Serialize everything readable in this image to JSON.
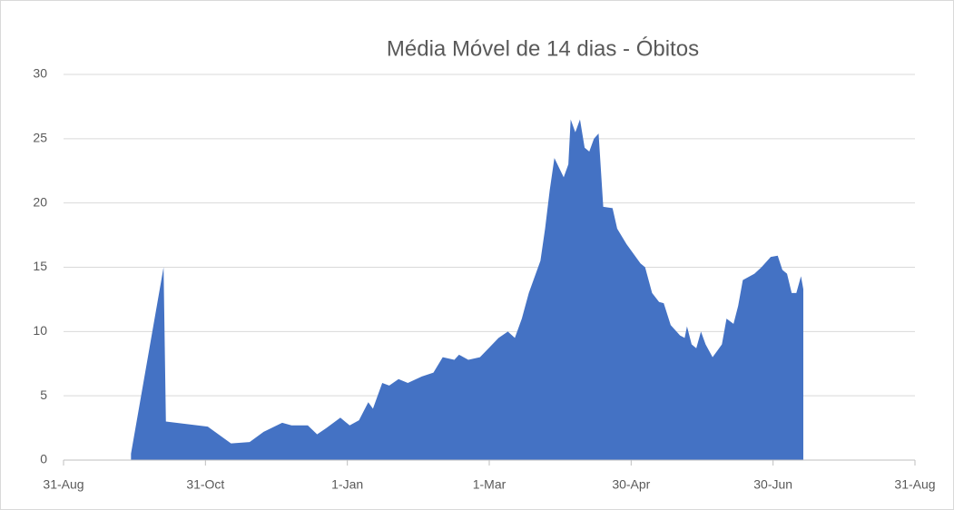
{
  "chart_data": {
    "type": "area",
    "title": "Média Móvel de 14 dias - Óbitos",
    "color": "#4472c4",
    "grid": true,
    "x": [
      29,
      43,
      44,
      62,
      72,
      80,
      86,
      94,
      98,
      105,
      109,
      113,
      119,
      123,
      127,
      131,
      133,
      137,
      140,
      144,
      148,
      154,
      159,
      163,
      168,
      170,
      174,
      179,
      187,
      191,
      194,
      197,
      200,
      205,
      207,
      209,
      211,
      215,
      217,
      218,
      220,
      222,
      224,
      226,
      228,
      230,
      232,
      236,
      238,
      242,
      248,
      250,
      253,
      256,
      258,
      261,
      265,
      267,
      268,
      270,
      272,
      274,
      276,
      279,
      281,
      283,
      285,
      288,
      290,
      292,
      297,
      300,
      304,
      307,
      309,
      311,
      313,
      315,
      317,
      318
    ],
    "values": [
      0.5,
      15,
      3,
      2.6,
      1.3,
      1.4,
      2.2,
      2.9,
      2.7,
      2.7,
      2,
      2.5,
      3.3,
      2.7,
      3.1,
      4.5,
      4,
      6,
      5.8,
      6.3,
      6,
      6.5,
      6.8,
      8,
      7.8,
      8.2,
      7.8,
      8,
      9.5,
      10,
      9.5,
      11,
      13,
      15.5,
      18,
      21,
      23.5,
      22,
      23,
      26.5,
      25.5,
      26.5,
      24.3,
      24,
      25,
      25.4,
      19.7,
      19.6,
      18,
      16.8,
      15.3,
      15,
      13,
      12.3,
      12.2,
      10.5,
      9.7,
      9.5,
      10.4,
      9,
      8.7,
      10,
      9,
      8,
      8.5,
      9,
      11,
      10.6,
      12,
      14,
      14.5,
      15,
      15.8,
      15.9,
      14.8,
      14.5,
      13,
      13,
      14.3,
      13.3
    ],
    "xlim": [
      0,
      366
    ],
    "xticks": [
      {
        "value": 0,
        "label": "31-Aug"
      },
      {
        "value": 61,
        "label": "31-Oct"
      },
      {
        "value": 122,
        "label": "1-Jan"
      },
      {
        "value": 183,
        "label": "1-Mar"
      },
      {
        "value": 244,
        "label": "30-Apr"
      },
      {
        "value": 305,
        "label": "30-Jun"
      },
      {
        "value": 366,
        "label": "31-Aug"
      }
    ],
    "ylim": [
      0,
      30
    ],
    "yticks": [
      0,
      5,
      10,
      15,
      20,
      25,
      30
    ]
  }
}
